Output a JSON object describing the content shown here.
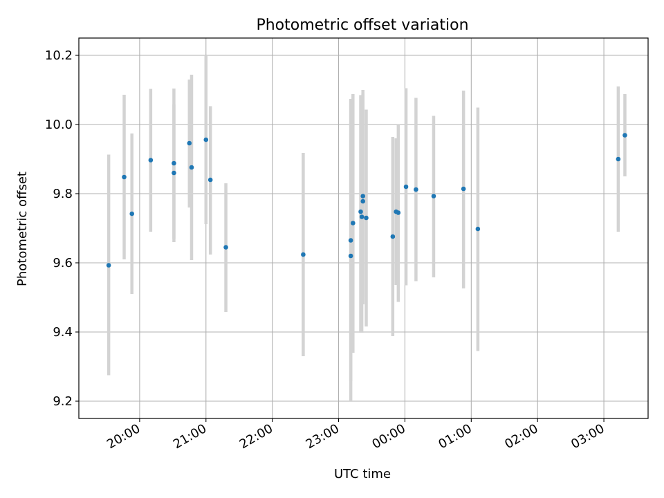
{
  "chart_data": {
    "type": "scatter",
    "title": "Photometric offset variation",
    "xlabel": "UTC time",
    "ylabel": "Photometric offset",
    "x_axis": "time",
    "x_ticks": [
      "20:00",
      "21:00",
      "22:00",
      "23:00",
      "00:00",
      "01:00",
      "02:00",
      "03:00"
    ],
    "x_range": [
      "19:05",
      "03:40"
    ],
    "y_ticks": [
      "9.2",
      "9.4",
      "9.6",
      "9.8",
      "10.0",
      "10.2"
    ],
    "ylim": [
      9.15,
      10.25
    ],
    "grid": true,
    "error_bars": true,
    "colors": {
      "marker": "#1f77b4",
      "errorbar": "#d3d3d3",
      "grid": "#b0b0b0"
    },
    "points": [
      {
        "t": "19:32",
        "y": 9.593,
        "lo": 9.275,
        "hi": 9.913
      },
      {
        "t": "19:46",
        "y": 9.848,
        "lo": 9.61,
        "hi": 10.086
      },
      {
        "t": "19:53",
        "y": 9.742,
        "lo": 9.51,
        "hi": 9.974
      },
      {
        "t": "20:10",
        "y": 9.897,
        "lo": 9.69,
        "hi": 10.103
      },
      {
        "t": "20:31",
        "y": 9.888,
        "lo": 9.67,
        "hi": 10.104
      },
      {
        "t": "20:31",
        "y": 9.86,
        "lo": 9.66,
        "hi": 10.058
      },
      {
        "t": "20:45",
        "y": 9.946,
        "lo": 9.76,
        "hi": 10.13
      },
      {
        "t": "20:47",
        "y": 9.876,
        "lo": 9.608,
        "hi": 10.144
      },
      {
        "t": "21:00",
        "y": 9.956,
        "lo": 9.712,
        "hi": 10.2
      },
      {
        "t": "21:04",
        "y": 9.84,
        "lo": 9.624,
        "hi": 10.053
      },
      {
        "t": "21:18",
        "y": 9.645,
        "lo": 9.458,
        "hi": 9.83
      },
      {
        "t": "22:28",
        "y": 9.624,
        "lo": 9.33,
        "hi": 9.918
      },
      {
        "t": "23:11",
        "y": 9.62,
        "lo": 9.2,
        "hi": 10.074
      },
      {
        "t": "23:11",
        "y": 9.665,
        "lo": 9.258,
        "hi": 10.07
      },
      {
        "t": "23:13",
        "y": 9.715,
        "lo": 9.34,
        "hi": 10.088
      },
      {
        "t": "23:20",
        "y": 9.748,
        "lo": 9.398,
        "hi": 10.085
      },
      {
        "t": "23:21",
        "y": 9.733,
        "lo": 9.398,
        "hi": 10.065
      },
      {
        "t": "23:22",
        "y": 9.778,
        "lo": 9.48,
        "hi": 10.1
      },
      {
        "t": "23:22",
        "y": 9.793,
        "lo": 9.5,
        "hi": 10.09
      },
      {
        "t": "23:25",
        "y": 9.73,
        "lo": 9.416,
        "hi": 10.043
      },
      {
        "t": "23:49",
        "y": 9.676,
        "lo": 9.388,
        "hi": 9.964
      },
      {
        "t": "23:52",
        "y": 9.748,
        "lo": 9.536,
        "hi": 9.96
      },
      {
        "t": "23:54",
        "y": 9.745,
        "lo": 9.487,
        "hi": 9.998
      },
      {
        "t": "00:01",
        "y": 9.82,
        "lo": 9.535,
        "hi": 10.105
      },
      {
        "t": "00:10",
        "y": 9.812,
        "lo": 9.547,
        "hi": 10.077
      },
      {
        "t": "00:26",
        "y": 9.793,
        "lo": 9.558,
        "hi": 10.025
      },
      {
        "t": "00:53",
        "y": 9.814,
        "lo": 9.526,
        "hi": 10.098
      },
      {
        "t": "01:06",
        "y": 9.698,
        "lo": 9.345,
        "hi": 10.049
      },
      {
        "t": "03:13",
        "y": 9.9,
        "lo": 9.69,
        "hi": 10.11
      },
      {
        "t": "03:19",
        "y": 9.969,
        "lo": 9.85,
        "hi": 10.088
      }
    ]
  }
}
